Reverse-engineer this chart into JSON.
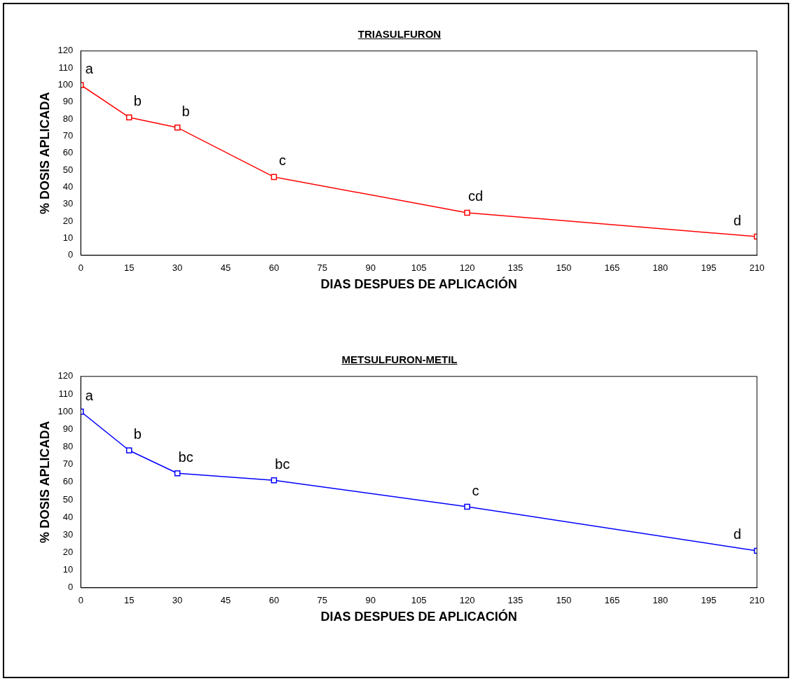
{
  "chart_data": [
    {
      "type": "line",
      "title": "TRIASULFURON",
      "xlabel": "DIAS DESPUES DE APLICACIÓN",
      "ylabel": "% DOSIS APLICADA",
      "x": [
        0,
        15,
        30,
        60,
        120,
        210
      ],
      "series": [
        {
          "color": "#ff0000",
          "values": [
            100,
            81,
            75,
            46,
            25,
            11
          ],
          "value_labels": [
            "a",
            "b",
            "b",
            "c",
            "cd",
            "d"
          ]
        }
      ],
      "xlim": [
        0,
        210
      ],
      "xticks": [
        0,
        15,
        30,
        45,
        60,
        75,
        90,
        105,
        120,
        135,
        150,
        165,
        180,
        195,
        210
      ],
      "ylim": [
        0,
        120
      ],
      "yticks": [
        0,
        10,
        20,
        30,
        40,
        50,
        60,
        70,
        80,
        90,
        100,
        110,
        120
      ],
      "grid": false,
      "legend": false,
      "marker": "square",
      "line_style": "solid"
    },
    {
      "type": "line",
      "title": "METSULFURON-METIL",
      "xlabel": "DIAS DESPUES DE APLICACIÓN",
      "ylabel": "% DOSIS APLICADA",
      "x": [
        0,
        15,
        30,
        60,
        120,
        210
      ],
      "series": [
        {
          "color": "#0000ff",
          "values": [
            100,
            78,
            65,
            61,
            46,
            21
          ],
          "value_labels": [
            "a",
            "b",
            "bc",
            "bc",
            "c",
            "d"
          ]
        }
      ],
      "xlim": [
        0,
        210
      ],
      "xticks": [
        0,
        15,
        30,
        45,
        60,
        75,
        90,
        105,
        120,
        135,
        150,
        165,
        180,
        195,
        210
      ],
      "ylim": [
        0,
        120
      ],
      "yticks": [
        0,
        10,
        20,
        30,
        40,
        50,
        60,
        70,
        80,
        90,
        100,
        110,
        120
      ],
      "grid": false,
      "legend": false,
      "marker": "square",
      "line_style": "solid"
    }
  ]
}
